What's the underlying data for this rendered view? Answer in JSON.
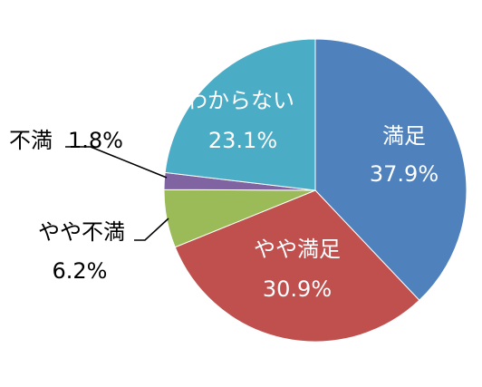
{
  "chart_data": {
    "type": "pie",
    "start": "12 o'clock, clockwise",
    "legend": "none",
    "slices": [
      {
        "name": "満足",
        "value": 37.9,
        "value_label": "37.9%",
        "color": "#4F81BD",
        "label_position": "inside"
      },
      {
        "name": "やや満足",
        "value": 30.9,
        "value_label": "30.9%",
        "color": "#C0504D",
        "label_position": "inside"
      },
      {
        "name": "やや不満",
        "value": 6.2,
        "value_label": "6.2%",
        "color": "#9BBB59",
        "label_position": "outside"
      },
      {
        "name": "不満",
        "value": 1.8,
        "value_label": "1.8%",
        "color": "#8064A2",
        "label_position": "outside"
      },
      {
        "name": "わからない",
        "value": 23.1,
        "value_label": "23.1%",
        "color": "#4BACC6",
        "label_position": "inside"
      }
    ]
  }
}
